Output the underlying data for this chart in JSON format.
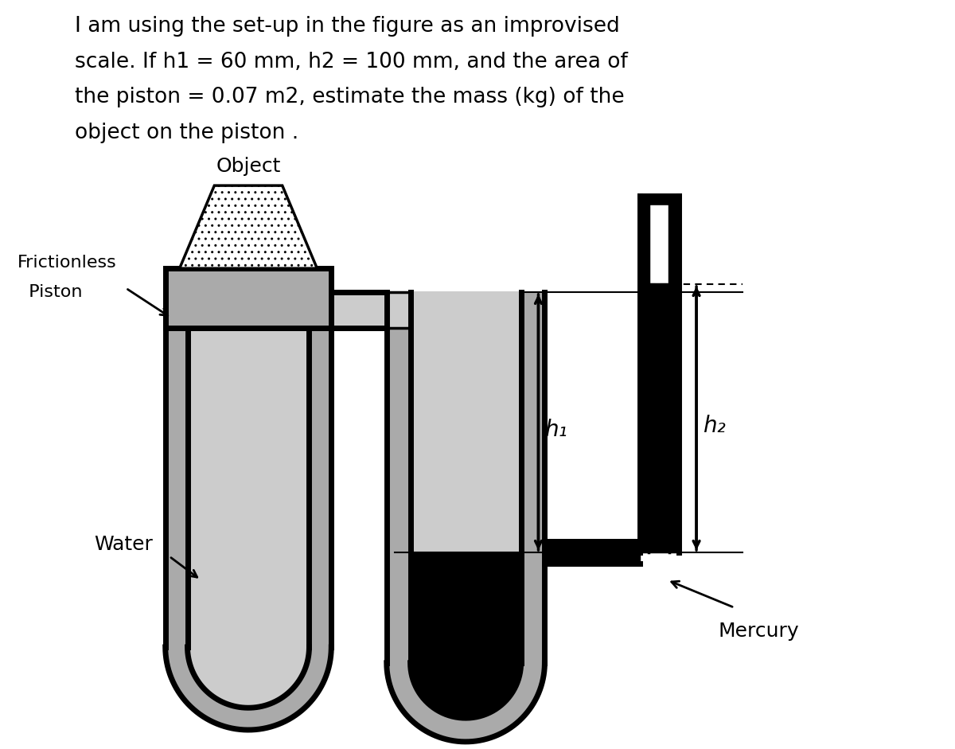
{
  "bg_color": "#ffffff",
  "black": "#000000",
  "gray_water": "#aaaaaa",
  "gray_light": "#cccccc",
  "white": "#ffffff",
  "title_lines": [
    "I am using the set-up in the figure as an improvised",
    "scale. If h1 = 60 mm, h2 = 100 mm, and the area of",
    "the piston = 0.07 m2, estimate the mass (kg) of the",
    "object on the piston ."
  ],
  "title_fontsize": 19,
  "label_object": "Object",
  "label_frictionless": "Frictionless",
  "label_piston": "  Piston",
  "label_water": "Water",
  "label_mercury": "Mercury",
  "label_h1": "h₁",
  "label_h2": "h₂",
  "lw_thick": 5.0,
  "lw_med": 2.5,
  "lw_thin": 1.5
}
